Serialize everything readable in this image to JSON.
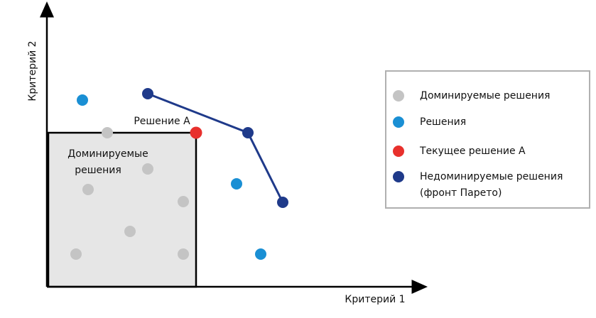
{
  "axes": {
    "x_label": "Критерий 1",
    "y_label": "Критерий 2"
  },
  "region_label": [
    "Доминируемые",
    "решения"
  ],
  "point_label": "Решение A",
  "legend": {
    "items": [
      {
        "label": [
          "Доминируемые решения"
        ]
      },
      {
        "label": [
          "Решения"
        ]
      },
      {
        "label": [
          "Текущее решение A"
        ]
      },
      {
        "label": [
          "Недоминируемые решения",
          "(фронт Парето)"
        ]
      }
    ]
  }
}
